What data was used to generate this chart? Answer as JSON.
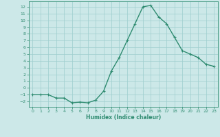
{
  "x": [
    0,
    1,
    2,
    3,
    4,
    5,
    6,
    7,
    8,
    9,
    10,
    11,
    12,
    13,
    14,
    15,
    16,
    17,
    18,
    19,
    20,
    21,
    22,
    23
  ],
  "y": [
    -1,
    -1,
    -1,
    -1.5,
    -1.5,
    -2.2,
    -2.1,
    -2.2,
    -1.8,
    -0.5,
    2.5,
    4.5,
    7,
    9.5,
    12,
    12.2,
    10.5,
    9.5,
    7.5,
    5.5,
    5,
    4.5,
    3.5,
    3.2
  ],
  "line_color": "#2e8b70",
  "marker": "+",
  "marker_size": 3,
  "bg_color": "#cce8e8",
  "grid_color": "#9ecece",
  "xlabel": "Humidex (Indice chaleur)",
  "xlim": [
    -0.5,
    23.5
  ],
  "ylim": [
    -2.8,
    12.8
  ],
  "xticks": [
    0,
    1,
    2,
    3,
    4,
    5,
    6,
    7,
    8,
    9,
    10,
    11,
    12,
    13,
    14,
    15,
    16,
    17,
    18,
    19,
    20,
    21,
    22,
    23
  ],
  "yticks": [
    -2,
    -1,
    0,
    1,
    2,
    3,
    4,
    5,
    6,
    7,
    8,
    9,
    10,
    11,
    12
  ],
  "tick_fontsize": 4.5,
  "label_fontsize": 5.5,
  "line_width": 1.0
}
